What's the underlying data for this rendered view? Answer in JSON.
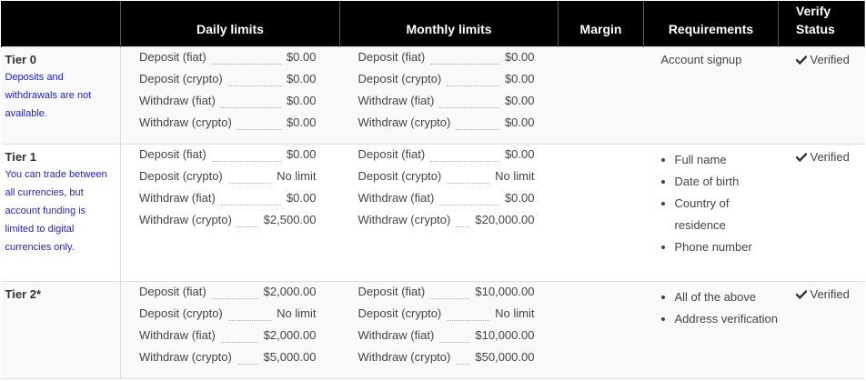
{
  "headers": {
    "tier": "",
    "daily": "Daily limits",
    "monthly": "Monthly limits",
    "margin": "Margin",
    "requirements": "Requirements",
    "verify_line1": "Verify",
    "verify_line2": "Status"
  },
  "tiers": [
    {
      "name": "Tier 0",
      "note": "Deposits and withdrawals are not available.",
      "daily": [
        {
          "label": "Deposit (fiat)",
          "value": "$0.00"
        },
        {
          "label": "Deposit (crypto)",
          "value": "$0.00"
        },
        {
          "label": "Withdraw (fiat)",
          "value": "$0.00"
        },
        {
          "label": "Withdraw (crypto)",
          "value": "$0.00"
        }
      ],
      "monthly": [
        {
          "label": "Deposit (fiat)",
          "value": "$0.00"
        },
        {
          "label": "Deposit (crypto)",
          "value": "$0.00"
        },
        {
          "label": "Withdraw (fiat)",
          "value": "$0.00"
        },
        {
          "label": "Withdraw (crypto)",
          "value": "$0.00"
        }
      ],
      "margin": "",
      "requirements_text": "Account signup",
      "status": "Verified",
      "status_icon": "check-icon"
    },
    {
      "name": "Tier 1",
      "note": "You can trade between all currencies, but account funding is limited to digital currencies only.",
      "daily": [
        {
          "label": "Deposit (fiat)",
          "value": "$0.00"
        },
        {
          "label": "Deposit (crypto)",
          "value": "No limit"
        },
        {
          "label": "Withdraw (fiat)",
          "value": "$0.00"
        },
        {
          "label": "Withdraw (crypto)",
          "value": "$2,500.00"
        }
      ],
      "monthly": [
        {
          "label": "Deposit (fiat)",
          "value": "$0.00"
        },
        {
          "label": "Deposit (crypto)",
          "value": "No limit"
        },
        {
          "label": "Withdraw (fiat)",
          "value": "$0.00"
        },
        {
          "label": "Withdraw (crypto)",
          "value": "$20,000.00"
        }
      ],
      "margin": "",
      "requirements": [
        "Full name",
        "Date of birth",
        "Country of residence",
        "Phone number"
      ],
      "status": "Verified",
      "status_icon": "check-icon"
    },
    {
      "name": "Tier 2*",
      "note": "",
      "daily": [
        {
          "label": "Deposit (fiat)",
          "value": "$2,000.00"
        },
        {
          "label": "Deposit (crypto)",
          "value": "No limit"
        },
        {
          "label": "Withdraw (fiat)",
          "value": "$2,000.00"
        },
        {
          "label": "Withdraw (crypto)",
          "value": "$5,000.00"
        }
      ],
      "monthly": [
        {
          "label": "Deposit (fiat)",
          "value": "$10,000.00"
        },
        {
          "label": "Deposit (crypto)",
          "value": "No limit"
        },
        {
          "label": "Withdraw (fiat)",
          "value": "$10,000.00"
        },
        {
          "label": "Withdraw (crypto)",
          "value": "$50,000.00"
        }
      ],
      "margin": "",
      "requirements": [
        "All of the above",
        "Address verification"
      ],
      "status": "Verified",
      "status_icon": "check-icon"
    }
  ],
  "colors": {
    "header_bg": "#000000",
    "header_text": "#ffffff",
    "note_text": "#2222cc",
    "row_alt_bg": "#f9f9f9"
  }
}
